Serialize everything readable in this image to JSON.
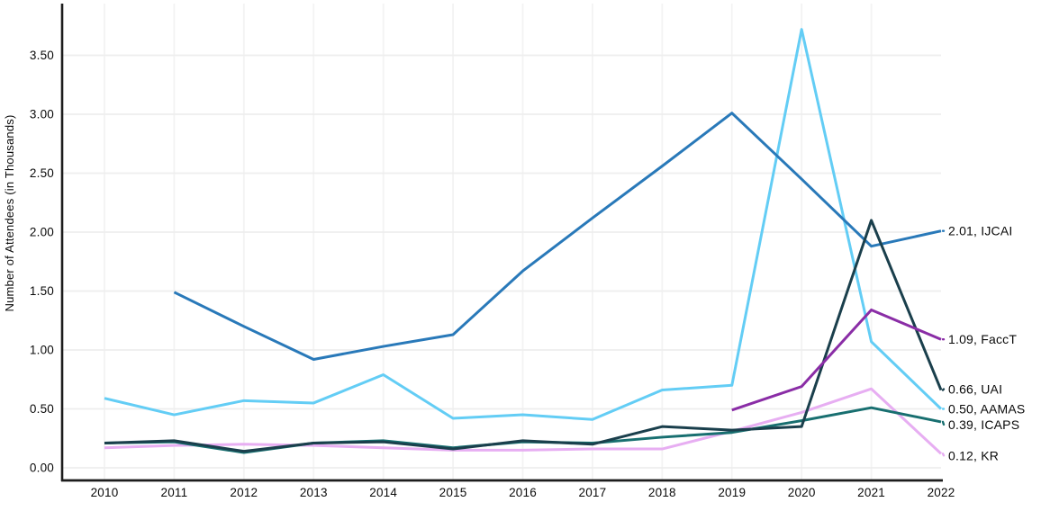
{
  "chart_data": {
    "type": "line",
    "title": "",
    "xlabel": "",
    "ylabel": "Number of Attendees (in Thousands)",
    "x": [
      2010,
      2011,
      2012,
      2013,
      2014,
      2015,
      2016,
      2017,
      2018,
      2019,
      2020,
      2021,
      2022
    ],
    "x_tick_labels": [
      "2010",
      "2011",
      "2012",
      "2013",
      "2014",
      "2015",
      "2016",
      "2017",
      "2018",
      "2019",
      "2020",
      "2021",
      "2022"
    ],
    "y_tick_labels": [
      "0.00",
      "0.50",
      "1.00",
      "1.50",
      "2.00",
      "2.50",
      "3.00",
      "3.50"
    ],
    "y_tick_values": [
      0.0,
      0.5,
      1.0,
      1.5,
      2.0,
      2.5,
      3.0,
      3.5
    ],
    "ylim": [
      0,
      3.9
    ],
    "grid": true,
    "legend_position": "end-of-line-labels-right",
    "series": [
      {
        "name": "AAMAS",
        "color": "#63cdf5",
        "end_label": "0.50, AAMAS",
        "label_nudge": 0,
        "values": [
          0.59,
          0.45,
          0.57,
          0.55,
          0.79,
          0.42,
          0.45,
          0.41,
          0.66,
          0.7,
          3.72,
          1.07,
          0.5
        ]
      },
      {
        "name": "KR",
        "color": "#e7aef2",
        "end_label": "0.12, KR",
        "label_nudge": 2,
        "values": [
          0.17,
          0.19,
          0.2,
          0.19,
          0.17,
          0.15,
          0.15,
          0.16,
          0.16,
          0.31,
          0.47,
          0.67,
          0.12
        ]
      },
      {
        "name": "ICAPS",
        "color": "#186f70",
        "end_label": "0.39, ICAPS",
        "label_nudge": 3,
        "values": [
          0.21,
          0.22,
          0.13,
          0.21,
          0.23,
          0.17,
          0.22,
          0.21,
          0.26,
          0.3,
          0.4,
          0.51,
          0.39
        ]
      },
      {
        "name": "IJCAI",
        "color": "#2979b9",
        "end_label": "2.01, IJCAI",
        "label_nudge": 0,
        "values": [
          null,
          1.49,
          1.2,
          0.92,
          1.03,
          1.13,
          1.67,
          2.12,
          2.56,
          3.01,
          2.45,
          1.88,
          2.01
        ]
      },
      {
        "name": "UAI",
        "color": "#1a3f4c",
        "end_label": "0.66, UAI",
        "label_nudge": -1,
        "values": [
          0.21,
          0.23,
          0.14,
          0.21,
          0.22,
          0.16,
          0.23,
          0.2,
          0.35,
          0.32,
          0.35,
          2.1,
          0.66
        ]
      },
      {
        "name": "FaccT",
        "color": "#8a2da6",
        "end_label": "1.09, FaccT",
        "label_nudge": 0,
        "values": [
          null,
          null,
          null,
          null,
          null,
          null,
          null,
          null,
          null,
          0.49,
          0.69,
          1.34,
          1.09
        ]
      }
    ]
  },
  "colors": {
    "axis": "#1c1c1c",
    "grid_horizontal": "#eeeeee",
    "grid_vertical": "#f3f3f3",
    "tick_text": "#0a0a0a",
    "background": "#ffffff"
  }
}
